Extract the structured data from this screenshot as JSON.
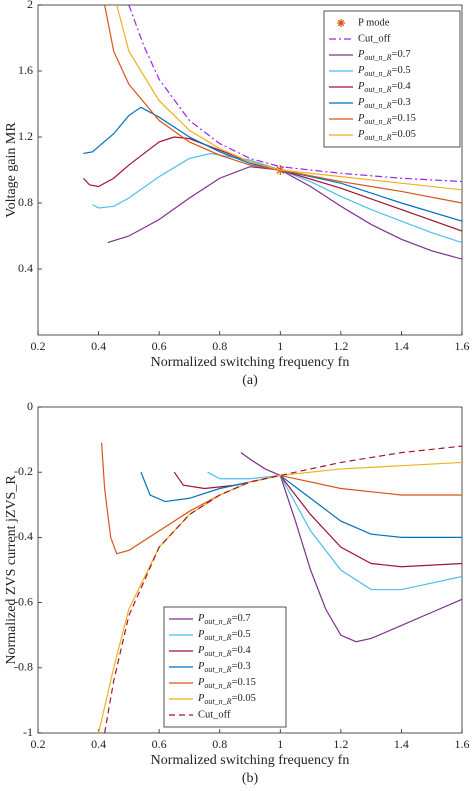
{
  "chart_data": [
    {
      "type": "line",
      "xlabel": "Normalized switching frequency fn",
      "ylabel": "Voltage gain MR",
      "caption": "(a)",
      "xlim": [
        0.2,
        1.6
      ],
      "xticks": [
        0.2,
        0.4,
        0.6,
        0.8,
        1,
        1.2,
        1.4,
        1.6
      ],
      "ylim": [
        0,
        2
      ],
      "yticks": [
        0.4,
        0.8,
        1.2,
        1.6,
        2
      ],
      "legend": "upper right",
      "series": [
        {
          "name": "P mode",
          "color": "#d95319",
          "marker": "star",
          "x": [
            1
          ],
          "values": [
            1
          ]
        },
        {
          "name": "Cut_off",
          "color": "#a020f0",
          "dash": "dashdot",
          "x": [
            0.5,
            0.55,
            0.6,
            0.7,
            0.8,
            0.9,
            1.0,
            1.2,
            1.4,
            1.6
          ],
          "values": [
            2.0,
            1.75,
            1.55,
            1.3,
            1.16,
            1.07,
            1.02,
            0.98,
            0.95,
            0.93
          ]
        },
        {
          "name": "Pout_n_R=0.7",
          "color": "#7e2f8e",
          "x": [
            0.43,
            0.5,
            0.6,
            0.7,
            0.8,
            0.9,
            1.0,
            1.1,
            1.2,
            1.3,
            1.4,
            1.5,
            1.6
          ],
          "values": [
            0.56,
            0.6,
            0.7,
            0.83,
            0.95,
            1.02,
            1.0,
            0.9,
            0.78,
            0.67,
            0.58,
            0.51,
            0.46
          ]
        },
        {
          "name": "Pout_n_R=0.5",
          "color": "#4dbeee",
          "x": [
            0.38,
            0.4,
            0.45,
            0.5,
            0.6,
            0.7,
            0.77,
            0.9,
            1.0,
            1.1,
            1.2,
            1.3,
            1.4,
            1.5,
            1.6
          ],
          "values": [
            0.79,
            0.77,
            0.78,
            0.83,
            0.96,
            1.07,
            1.1,
            1.06,
            1.0,
            0.93,
            0.84,
            0.76,
            0.69,
            0.62,
            0.56
          ]
        },
        {
          "name": "Pout_n_R=0.4",
          "color": "#a2142f",
          "x": [
            0.35,
            0.37,
            0.4,
            0.45,
            0.5,
            0.6,
            0.65,
            0.7,
            0.8,
            0.9,
            1.0,
            1.2,
            1.4,
            1.6
          ],
          "values": [
            0.95,
            0.91,
            0.9,
            0.95,
            1.03,
            1.17,
            1.2,
            1.19,
            1.12,
            1.05,
            1.0,
            0.89,
            0.76,
            0.63
          ]
        },
        {
          "name": "Pout_n_R=0.3",
          "color": "#0072bd",
          "x": [
            0.35,
            0.38,
            0.45,
            0.5,
            0.54,
            0.6,
            0.7,
            0.8,
            0.9,
            1.0,
            1.2,
            1.4,
            1.6
          ],
          "values": [
            1.1,
            1.11,
            1.22,
            1.33,
            1.38,
            1.32,
            1.2,
            1.11,
            1.04,
            1.0,
            0.92,
            0.8,
            0.69
          ]
        },
        {
          "name": "Pout_n_R=0.15",
          "color": "#d95319",
          "x": [
            0.42,
            0.45,
            0.5,
            0.6,
            0.7,
            0.8,
            0.9,
            1.0,
            1.2,
            1.4,
            1.6
          ],
          "values": [
            2.0,
            1.72,
            1.52,
            1.3,
            1.17,
            1.09,
            1.03,
            1.0,
            0.93,
            0.87,
            0.8
          ]
        },
        {
          "name": "Pout_n_R=0.05",
          "color": "#edb120",
          "x": [
            0.46,
            0.5,
            0.6,
            0.7,
            0.8,
            0.9,
            1.0,
            1.2,
            1.4,
            1.6
          ],
          "values": [
            2.0,
            1.72,
            1.42,
            1.24,
            1.13,
            1.05,
            1.0,
            0.96,
            0.92,
            0.88
          ]
        }
      ]
    },
    {
      "type": "line",
      "xlabel": "Normalized switching frequency fn",
      "ylabel": "Normalized ZVS current jZVS_R",
      "caption": "(b)",
      "xlim": [
        0.2,
        1.6
      ],
      "xticks": [
        0.2,
        0.4,
        0.6,
        0.8,
        1,
        1.2,
        1.4,
        1.6
      ],
      "ylim": [
        -1,
        0
      ],
      "yticks": [
        -1,
        -0.8,
        -0.6,
        -0.4,
        -0.2,
        0
      ],
      "legend": "lower center",
      "series": [
        {
          "name": "Pout_n_R=0.7",
          "color": "#7e2f8e",
          "x": [
            0.87,
            0.9,
            0.95,
            1.0,
            1.05,
            1.1,
            1.15,
            1.2,
            1.25,
            1.3,
            1.4,
            1.5,
            1.6
          ],
          "values": [
            -0.14,
            -0.16,
            -0.19,
            -0.21,
            -0.35,
            -0.5,
            -0.62,
            -0.7,
            -0.72,
            -0.71,
            -0.67,
            -0.63,
            -0.59
          ]
        },
        {
          "name": "Pout_n_R=0.5",
          "color": "#4dbeee",
          "x": [
            0.76,
            0.8,
            0.9,
            1.0,
            1.1,
            1.2,
            1.3,
            1.4,
            1.5,
            1.6
          ],
          "values": [
            -0.2,
            -0.22,
            -0.22,
            -0.21,
            -0.38,
            -0.5,
            -0.56,
            -0.56,
            -0.54,
            -0.52
          ]
        },
        {
          "name": "Pout_n_R=0.4",
          "color": "#a2142f",
          "x": [
            0.65,
            0.68,
            0.75,
            0.85,
            1.0,
            1.1,
            1.2,
            1.3,
            1.4,
            1.6
          ],
          "values": [
            -0.2,
            -0.24,
            -0.25,
            -0.24,
            -0.21,
            -0.33,
            -0.43,
            -0.48,
            -0.49,
            -0.48
          ]
        },
        {
          "name": "Pout_n_R=0.3",
          "color": "#0072bd",
          "x": [
            0.54,
            0.57,
            0.62,
            0.7,
            0.8,
            0.9,
            1.0,
            1.1,
            1.2,
            1.3,
            1.4,
            1.6
          ],
          "values": [
            -0.2,
            -0.27,
            -0.29,
            -0.28,
            -0.25,
            -0.23,
            -0.21,
            -0.28,
            -0.35,
            -0.39,
            -0.4,
            -0.4
          ]
        },
        {
          "name": "Pout_n_R=0.15",
          "color": "#d95319",
          "x": [
            0.41,
            0.42,
            0.44,
            0.46,
            0.5,
            0.6,
            0.7,
            0.8,
            0.9,
            1.0,
            1.2,
            1.4,
            1.6
          ],
          "values": [
            -0.11,
            -0.25,
            -0.4,
            -0.45,
            -0.44,
            -0.38,
            -0.32,
            -0.27,
            -0.23,
            -0.21,
            -0.25,
            -0.27,
            -0.27
          ]
        },
        {
          "name": "Pout_n_R=0.05",
          "color": "#edb120",
          "x": [
            0.4,
            0.45,
            0.5,
            0.6,
            0.7,
            0.8,
            0.9,
            1.0,
            1.2,
            1.4,
            1.6
          ],
          "values": [
            -1,
            -0.8,
            -0.62,
            -0.43,
            -0.33,
            -0.27,
            -0.23,
            -0.21,
            -0.19,
            -0.18,
            -0.17
          ]
        },
        {
          "name": "Cut_off",
          "color": "#a2142f",
          "dash": "dashed",
          "x": [
            0.42,
            0.45,
            0.5,
            0.6,
            0.7,
            0.8,
            0.9,
            1.0,
            1.2,
            1.4,
            1.6
          ],
          "values": [
            -1,
            -0.84,
            -0.64,
            -0.43,
            -0.33,
            -0.27,
            -0.23,
            -0.21,
            -0.17,
            -0.14,
            -0.12
          ]
        }
      ]
    }
  ]
}
